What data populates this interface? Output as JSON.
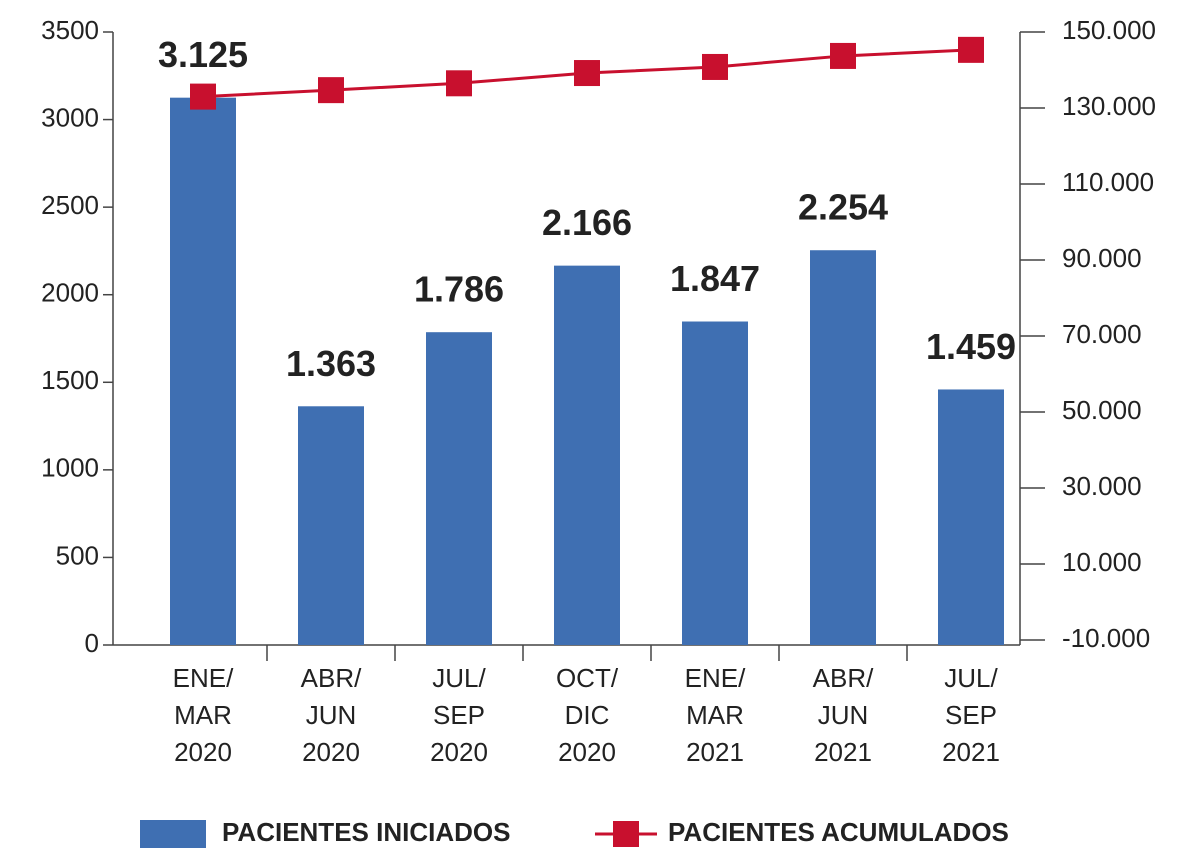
{
  "chart_data": {
    "type": "bar",
    "categories": [
      [
        "ENE/",
        "MAR",
        "2020"
      ],
      [
        "ABR/",
        "JUN",
        "2020"
      ],
      [
        "JUL/",
        "SEP",
        "2020"
      ],
      [
        "OCT/",
        "DIC",
        "2020"
      ],
      [
        "ENE/",
        "MAR",
        "2021"
      ],
      [
        "ABR/",
        "JUN",
        "2021"
      ],
      [
        "JUL/",
        "SEP",
        "2021"
      ]
    ],
    "series": [
      {
        "name": "PACIENTES INICIADOS",
        "type": "bar",
        "color": "#3f6fb2",
        "values": [
          3125,
          1363,
          1786,
          2166,
          1847,
          2254,
          1459
        ],
        "value_labels": [
          "3.125",
          "1.363",
          "1.786",
          "2.166",
          "1.847",
          "2.254",
          "1.459"
        ]
      },
      {
        "name": "PACIENTES ACUMULADOS",
        "type": "line",
        "axis": "y2",
        "color": "#c8102e",
        "values": [
          133000,
          134700,
          136500,
          139200,
          140800,
          143700,
          145300
        ]
      }
    ],
    "ylim": [
      0,
      3500
    ],
    "yticks": [
      0,
      500,
      1000,
      1500,
      2000,
      2500,
      3000,
      3500
    ],
    "y2lim": [
      -10000,
      150000
    ],
    "y2ticks": [
      {
        "value": -10000,
        "label": "-10.000"
      },
      {
        "value": 10000,
        "label": "10.000"
      },
      {
        "value": 30000,
        "label": "30.000"
      },
      {
        "value": 50000,
        "label": "50.000"
      },
      {
        "value": 70000,
        "label": "70.000"
      },
      {
        "value": 90000,
        "label": "90.000"
      },
      {
        "value": 110000,
        "label": "110.000"
      },
      {
        "value": 130000,
        "label": "130.000"
      },
      {
        "value": 150000,
        "label": "150.000"
      }
    ],
    "grid": false,
    "legend": "bottom"
  }
}
